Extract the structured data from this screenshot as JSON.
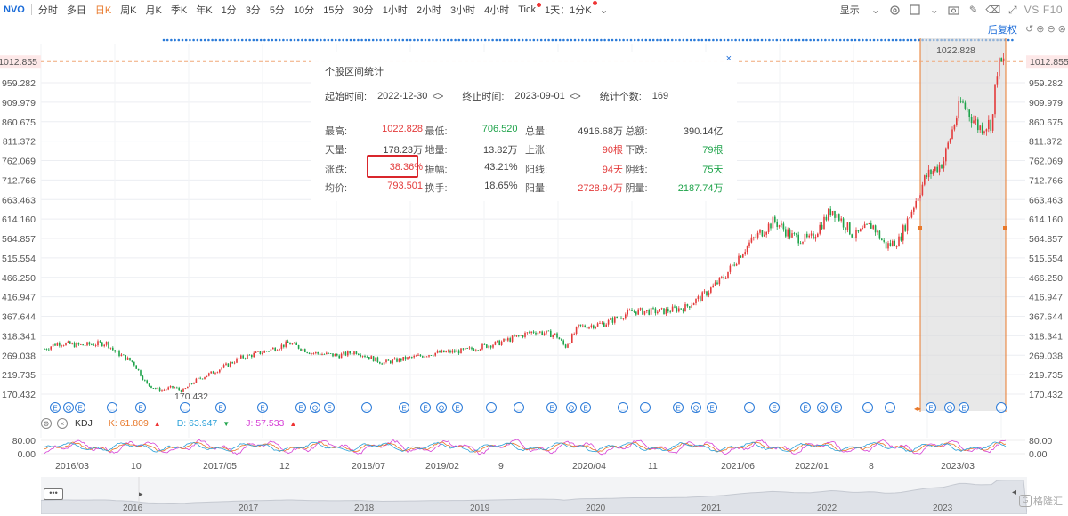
{
  "toolbar": {
    "symbol": "NVO",
    "periods": [
      {
        "label": "分时",
        "active": false,
        "dot": false
      },
      {
        "label": "多日",
        "active": false,
        "dot": false
      },
      {
        "label": "日K",
        "active": true,
        "dot": false
      },
      {
        "label": "周K",
        "active": false,
        "dot": false
      },
      {
        "label": "月K",
        "active": false,
        "dot": false
      },
      {
        "label": "季K",
        "active": false,
        "dot": false
      },
      {
        "label": "年K",
        "active": false,
        "dot": false
      },
      {
        "label": "1分",
        "active": false,
        "dot": false
      },
      {
        "label": "3分",
        "active": false,
        "dot": false
      },
      {
        "label": "5分",
        "active": false,
        "dot": false
      },
      {
        "label": "10分",
        "active": false,
        "dot": false
      },
      {
        "label": "15分",
        "active": false,
        "dot": false
      },
      {
        "label": "30分",
        "active": false,
        "dot": false
      },
      {
        "label": "1小时",
        "active": false,
        "dot": false
      },
      {
        "label": "2小时",
        "active": false,
        "dot": false
      },
      {
        "label": "3小时",
        "active": false,
        "dot": false
      },
      {
        "label": "4小时",
        "active": false,
        "dot": false
      },
      {
        "label": "Tick",
        "active": false,
        "dot": true
      },
      {
        "label": "1天：1分K",
        "active": false,
        "dot": true
      }
    ],
    "display_label": "显示",
    "vs_label": "VS",
    "f10_label": "F10",
    "icons": [
      "gear-icon",
      "square-icon",
      "camera-icon",
      "pencil-icon",
      "eraser-icon",
      "fullscreen-icon"
    ]
  },
  "right_controls": {
    "adjust_label": "后复权",
    "icons": [
      "undo-icon",
      "zoom-in-icon",
      "zoom-out-icon",
      "close-icon"
    ]
  },
  "price_axis": {
    "current_price": "1012.855",
    "labels": [
      "959.282",
      "909.979",
      "860.675",
      "811.372",
      "762.069",
      "712.766",
      "663.463",
      "614.160",
      "564.857",
      "515.554",
      "466.250",
      "416.947",
      "367.644",
      "318.341",
      "269.038",
      "219.735",
      "170.432"
    ]
  },
  "chart_marks": {
    "high_label": "1022.828",
    "low_label": "170.432"
  },
  "stats_panel": {
    "title": "个股区间统计",
    "close_label": "×",
    "start_label": "起始时间:",
    "start_value": "2022-12-30",
    "end_label": "终止时间:",
    "end_value": "2023-09-01",
    "count_label": "统计个数:",
    "count_value": "169",
    "arrows": "<>",
    "rows": [
      [
        {
          "k": "最高:",
          "v": "1022.828",
          "c": "red"
        },
        {
          "k": "最低:",
          "v": "706.520",
          "c": "green"
        },
        {
          "k": "总量:",
          "v": "4916.68万",
          "c": "dark"
        },
        {
          "k": "总额:",
          "v": "390.14亿",
          "c": "dark"
        }
      ],
      [
        {
          "k": "天量:",
          "v": "178.23万",
          "c": "dark"
        },
        {
          "k": "地量:",
          "v": "13.82万",
          "c": "dark"
        },
        {
          "k": "上涨:",
          "v": "90根",
          "c": "red"
        },
        {
          "k": "下跌:",
          "v": "79根",
          "c": "green"
        }
      ],
      [
        {
          "k": "涨跌:",
          "v": "38.36%",
          "c": "red"
        },
        {
          "k": "振幅:",
          "v": "43.21%",
          "c": "dark"
        },
        {
          "k": "阳线:",
          "v": "94天",
          "c": "red"
        },
        {
          "k": "阴线:",
          "v": "75天",
          "c": "green"
        }
      ],
      [
        {
          "k": "均价:",
          "v": "793.501",
          "c": "red"
        },
        {
          "k": "换手:",
          "v": "18.65%",
          "c": "dark"
        },
        {
          "k": "阳量:",
          "v": "2728.94万",
          "c": "red"
        },
        {
          "k": "阴量:",
          "v": "2187.74万",
          "c": "green"
        }
      ]
    ]
  },
  "kdj": {
    "name": "KDJ",
    "k": "K: 61.809",
    "d": "D: 63.947",
    "j": "J: 57.533",
    "axis_top": "80.00",
    "axis_bottom": "0.00",
    "colors": {
      "k": "#e8782a",
      "d": "#2aa0d8",
      "j": "#d63fd6"
    }
  },
  "time_axis": [
    "2016/03",
    "10",
    "2017/05",
    "12",
    "2018/07",
    "2019/02",
    "9",
    "2020/04",
    "11",
    "2021/06",
    "2022/01",
    "8",
    "2023/03"
  ],
  "navigator": {
    "handle_label": "•••",
    "years": [
      "2016",
      "2017",
      "2018",
      "2019",
      "2020",
      "2021",
      "2022",
      "2023"
    ]
  },
  "watermark": {
    "logo": "G",
    "text": "格隆汇"
  },
  "colors": {
    "up": "#e33b3b",
    "down": "#1ea34a",
    "accent": "#e8782a",
    "blue": "#1a6bd8"
  }
}
